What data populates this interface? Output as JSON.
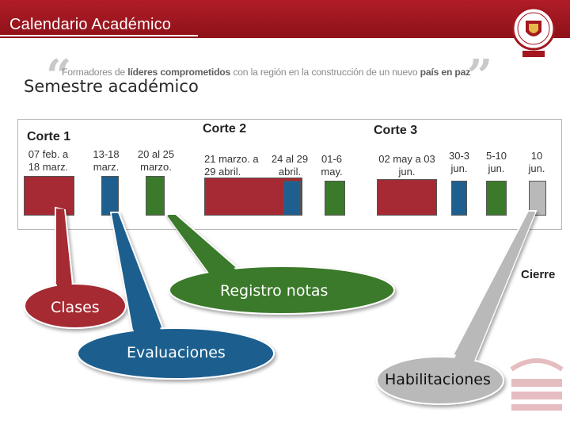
{
  "header": {
    "title": "Calendario Académico"
  },
  "slogan": {
    "part1": "Formadores de ",
    "part2": "líderes comprometidos",
    "part3": " con la región en la construcción de un nuevo ",
    "part4": "país en paz"
  },
  "section_title": "Semestre académico",
  "cortes": {
    "c1": "Corte 1",
    "c2": "Corte 2",
    "c3": "Corte 3"
  },
  "dates": {
    "d1": "07 feb. a 18 marz.",
    "d2": "13-18 marz.",
    "d3": "20 al 25 marzo.",
    "d4": "21 marzo. a 29 abril.",
    "d4b": "24 al 29 abril.",
    "d5": "01-6 may.",
    "d6": "02 may a 03 jun.",
    "d7": "30-3 jun.",
    "d8": "5-10 jun.",
    "d9": "10 jun."
  },
  "callouts": {
    "clases": "Clases",
    "evaluaciones": "Evaluaciones",
    "registro": "Registro notas",
    "habilitaciones": "Habilitaciones",
    "cierre": "Cierre"
  },
  "colors": {
    "red": "#a52a33",
    "blue": "#1f5f8f",
    "green": "#3a7a2a",
    "gray": "#b9b9b9",
    "header": "#a3171f"
  }
}
